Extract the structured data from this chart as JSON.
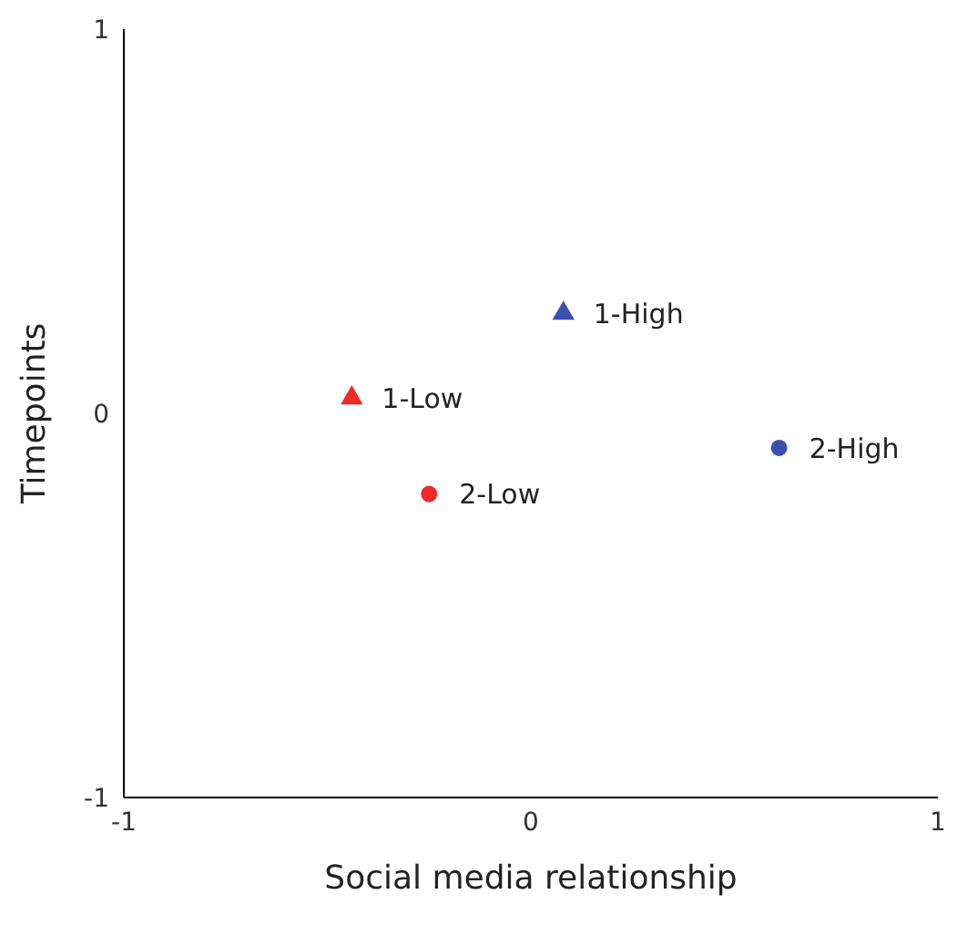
{
  "chart_data": {
    "type": "scatter",
    "xlabel": "Social media relationship",
    "ylabel": "Timepoints",
    "xlim": [
      -1,
      1
    ],
    "ylim": [
      -1,
      1
    ],
    "xticks": [
      -1,
      0,
      1
    ],
    "yticks": [
      -1,
      0,
      1
    ],
    "grid": false,
    "legend": false,
    "series": [
      {
        "name": "1-High",
        "color": "#3a4fae",
        "marker": "triangle",
        "x": [
          0.08
        ],
        "values": [
          0.26
        ]
      },
      {
        "name": "1-Low",
        "color": "#f02828",
        "marker": "triangle",
        "x": [
          -0.44
        ],
        "values": [
          0.04
        ]
      },
      {
        "name": "2-Low",
        "color": "#f02828",
        "marker": "circle",
        "x": [
          -0.25
        ],
        "values": [
          -0.21
        ]
      },
      {
        "name": "2-High",
        "color": "#3a4fae",
        "marker": "circle",
        "x": [
          0.61
        ],
        "values": [
          -0.09
        ]
      }
    ]
  }
}
